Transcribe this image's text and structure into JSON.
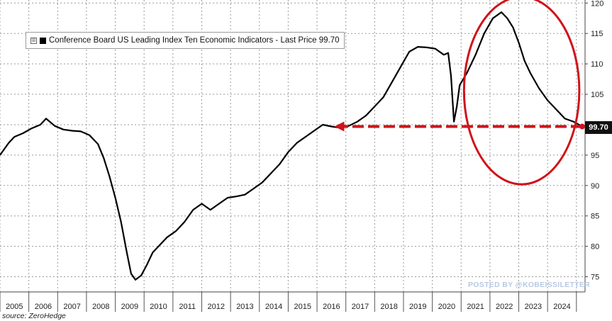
{
  "legend": {
    "toggle_symbol": "⊞",
    "label": "Conference Board US Leading Index Ten Economic Indicators - Last Price 99.70"
  },
  "last_price_label": "99.70",
  "source_note": "source: ZeroHedge",
  "watermark": "POSTED BY @KOBEISSILETTER",
  "colors": {
    "line": "#000000",
    "annotation": "#d0131a",
    "grid": "#9a9a9a",
    "last_price_bg": "#111111"
  },
  "chart_data": {
    "type": "line",
    "title": "",
    "xlabel": "",
    "ylabel": "",
    "xlim": [
      2004.5,
      2024.8
    ],
    "ylim": [
      72.5,
      120.5
    ],
    "y_ticks": [
      75,
      80,
      85,
      90,
      95,
      100,
      105,
      110,
      115,
      120
    ],
    "x_tick_labels": [
      "2005",
      "2006",
      "2007",
      "2008",
      "2009",
      "2010",
      "2011",
      "2012",
      "2013",
      "2014",
      "2015",
      "2016",
      "2017",
      "2018",
      "2019",
      "2020",
      "2021",
      "2022",
      "2023",
      "2024"
    ],
    "grid": true,
    "legend_position": "top-left",
    "y_axis_side": "right",
    "series": [
      {
        "name": "Conference Board US Leading Index Ten Economic Indicators",
        "last_value": 99.7,
        "x": [
          2004.5,
          2004.8,
          2005.0,
          2005.3,
          2005.6,
          2005.9,
          2006.1,
          2006.4,
          2006.7,
          2007.0,
          2007.3,
          2007.6,
          2007.9,
          2008.1,
          2008.3,
          2008.5,
          2008.7,
          2008.9,
          2009.05,
          2009.2,
          2009.4,
          2009.6,
          2009.8,
          2010.0,
          2010.3,
          2010.6,
          2010.9,
          2011.2,
          2011.5,
          2011.8,
          2012.1,
          2012.4,
          2012.7,
          2013.0,
          2013.3,
          2013.6,
          2013.9,
          2014.2,
          2014.5,
          2014.8,
          2015.1,
          2015.4,
          2015.7,
          2016.0,
          2016.3,
          2016.6,
          2016.9,
          2017.2,
          2017.5,
          2017.8,
          2018.1,
          2018.4,
          2018.7,
          2019.0,
          2019.3,
          2019.6,
          2019.9,
          2020.05,
          2020.15,
          2020.25,
          2020.35,
          2020.45,
          2020.7,
          2021.0,
          2021.3,
          2021.6,
          2021.9,
          2022.1,
          2022.3,
          2022.5,
          2022.7,
          2022.9,
          2023.2,
          2023.5,
          2023.8,
          2024.1,
          2024.4,
          2024.7
        ],
        "y": [
          95.0,
          97.0,
          98.0,
          98.6,
          99.4,
          100.0,
          101.0,
          99.8,
          99.2,
          99.0,
          98.9,
          98.3,
          96.8,
          94.5,
          91.5,
          88.0,
          84.0,
          79.0,
          75.5,
          74.5,
          75.2,
          77.0,
          79.0,
          80.0,
          81.5,
          82.5,
          84.0,
          86.0,
          87.0,
          86.0,
          87.0,
          88.0,
          88.2,
          88.5,
          89.5,
          90.5,
          92.0,
          93.5,
          95.5,
          97.0,
          98.0,
          99.0,
          100.0,
          99.7,
          99.5,
          99.8,
          100.5,
          101.5,
          103.0,
          104.5,
          107.0,
          109.5,
          112.0,
          112.8,
          112.7,
          112.5,
          111.5,
          111.8,
          108.0,
          100.5,
          103.0,
          106.5,
          108.5,
          111.5,
          115.0,
          117.5,
          118.5,
          117.5,
          116.0,
          113.5,
          110.5,
          108.5,
          106.0,
          104.0,
          102.5,
          101.0,
          100.5,
          99.7
        ]
      }
    ],
    "annotations": [
      {
        "type": "dashed-arrow",
        "direction": "left",
        "y_value": 99.7,
        "x_from": 2024.7,
        "x_to": 2016.1
      },
      {
        "type": "ellipse",
        "x_range": [
          2020.6,
          2024.6
        ],
        "y_range": [
          90.2,
          121.0
        ]
      }
    ]
  }
}
